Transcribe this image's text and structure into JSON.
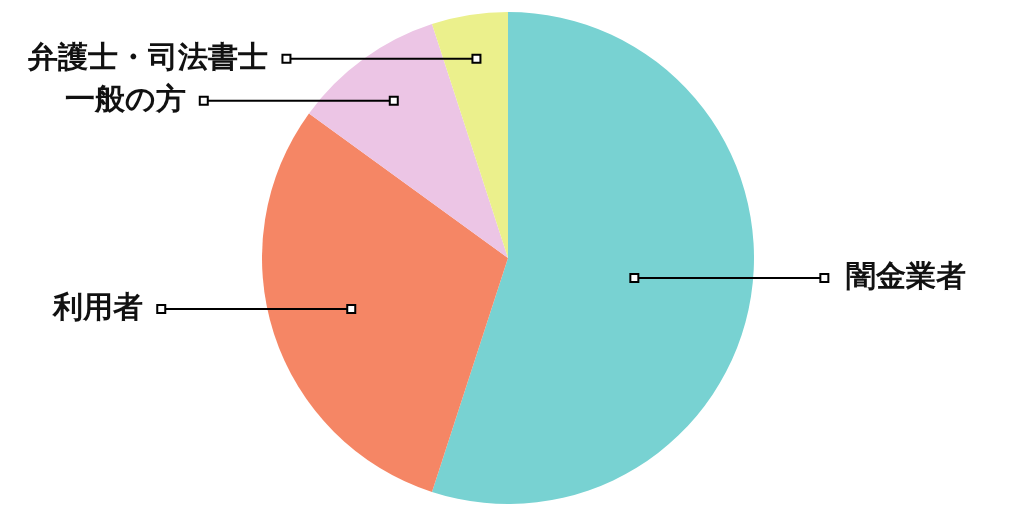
{
  "chart_data": {
    "type": "pie",
    "categories": [
      "闇金業者",
      "利用者",
      "一般の方",
      "弁護士・司法書士"
    ],
    "values": [
      55,
      30,
      10,
      5
    ],
    "colors": [
      "#78d2d2",
      "#f58665",
      "#ecc5e5",
      "#ebf08c"
    ],
    "legend": false
  }
}
